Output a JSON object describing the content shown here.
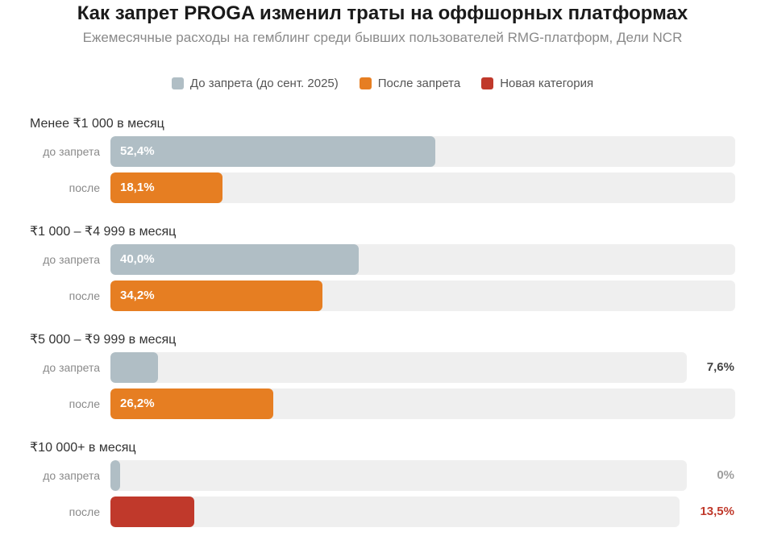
{
  "header": {
    "title": "Как запрет PROGA изменил траты на оффшорных платформах",
    "subtitle": "Ежемесячные расходы на гемблинг среди бывших пользователей RMG-платформ, Дели NCR"
  },
  "legend": [
    {
      "label": "До запрета (до сент. 2025)",
      "color": "#b0bec5"
    },
    {
      "label": "После запрета",
      "color": "#e67e22"
    },
    {
      "label": "Новая категория",
      "color": "#c0392b"
    }
  ],
  "chart_data": {
    "type": "bar",
    "orientation": "horizontal",
    "title": "Как запрет PROGA изменил траты на оффшорных платформах",
    "subtitle": "Ежемесячные расходы на гемблинг среди бывших пользователей RMG-платформ, Дели NCR",
    "xlim": [
      0,
      100
    ],
    "categories": [
      "Менее ₹1 000 в месяц",
      "₹1 000 – ₹4 999 в месяц",
      "₹5 000 – ₹9 999 в месяц",
      "₹10 000+ в месяц"
    ],
    "series": [
      {
        "name": "До запрета (до сент. 2025)",
        "values": [
          52.4,
          40.0,
          7.6,
          0
        ]
      },
      {
        "name": "После запрета",
        "values": [
          18.1,
          34.2,
          26.2,
          13.5
        ]
      }
    ],
    "groups": [
      {
        "label": "Менее ₹1 000 в месяц",
        "rows": [
          {
            "label": "до запрета",
            "value": 52.4,
            "text": "52,4%",
            "color": "#b0bec5",
            "label_position": "inside",
            "text_color": "#ffffff"
          },
          {
            "label": "после",
            "value": 18.1,
            "text": "18,1%",
            "color": "#e67e22",
            "label_position": "inside",
            "text_color": "#ffffff"
          }
        ]
      },
      {
        "label": "₹1 000 – ₹4 999 в месяц",
        "rows": [
          {
            "label": "до запрета",
            "value": 40.0,
            "text": "40,0%",
            "color": "#b0bec5",
            "label_position": "inside",
            "text_color": "#ffffff"
          },
          {
            "label": "после",
            "value": 34.2,
            "text": "34,2%",
            "color": "#e67e22",
            "label_position": "inside",
            "text_color": "#ffffff"
          }
        ]
      },
      {
        "label": "₹5 000 – ₹9 999 в месяц",
        "rows": [
          {
            "label": "до запрета",
            "value": 7.6,
            "text": "7,6%",
            "color": "#b0bec5",
            "label_position": "outside",
            "text_color": "#444444"
          },
          {
            "label": "после",
            "value": 26.2,
            "text": "26,2%",
            "color": "#e67e22",
            "label_position": "inside",
            "text_color": "#ffffff"
          }
        ]
      },
      {
        "label": "₹10 000+ в месяц",
        "rows": [
          {
            "label": "до запрета",
            "value": 0,
            "text": "0%",
            "color": "#b0bec5",
            "label_position": "outside",
            "text_color": "#9e9e9e"
          },
          {
            "label": "после",
            "value": 13.5,
            "text": "13,5%",
            "color": "#c0392b",
            "label_position": "outside",
            "text_color": "#c0392b"
          }
        ]
      }
    ]
  }
}
